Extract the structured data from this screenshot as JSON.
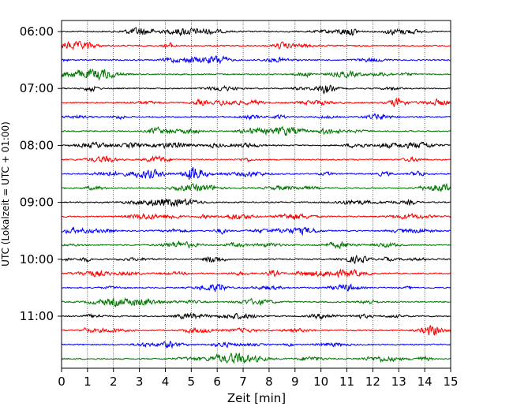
{
  "chart_data": {
    "type": "line",
    "title": "",
    "xlabel": "Zeit  [min]",
    "ylabel": "UTC (Lokalzeit = UTC + 01:00)",
    "xlim": [
      0,
      15
    ],
    "x_ticks": [
      "0",
      "1",
      "2",
      "3",
      "4",
      "5",
      "6",
      "7",
      "8",
      "9",
      "10",
      "11",
      "12",
      "13",
      "14",
      "15"
    ],
    "y_ticks": [
      {
        "label": "06:00",
        "trace_index": 0
      },
      {
        "label": "07:00",
        "trace_index": 4
      },
      {
        "label": "08:00",
        "trace_index": 8
      },
      {
        "label": "09:00",
        "trace_index": 12
      },
      {
        "label": "10:00",
        "trace_index": 16
      },
      {
        "label": "11:00",
        "trace_index": 20
      }
    ],
    "trace_count": 24,
    "trace_interval_min": 15,
    "trace_colors": [
      "#000000",
      "#ff0000",
      "#0000ff",
      "#007700"
    ],
    "vertical_grid": true,
    "grid_style": "dotted"
  }
}
